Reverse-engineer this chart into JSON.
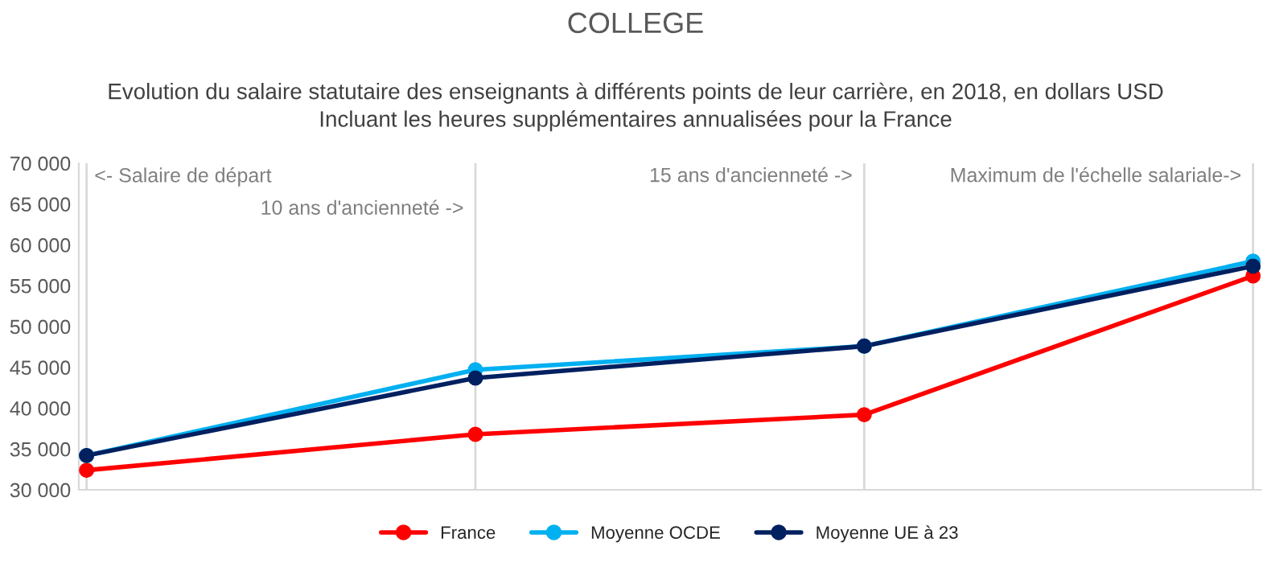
{
  "chart_data": {
    "type": "line",
    "title": "COLLEGE",
    "subtitle": "Evolution du salaire statutaire des enseignants à différents points de leur carrière, en 2018, en dollars USD\nIncluant les heures supplémentaires annualisées pour la France",
    "categories": [
      null,
      null,
      null,
      null
    ],
    "series": [
      {
        "name": "France",
        "color": "#ff0000",
        "values": [
          32400,
          36800,
          39200,
          56200
        ]
      },
      {
        "name": "Moyenne OCDE",
        "color": "#00b0f0",
        "values": [
          34200,
          44700,
          47600,
          58000
        ]
      },
      {
        "name": "Moyenne UE à 23",
        "color": "#002060",
        "values": [
          34200,
          43700,
          47600,
          57400
        ]
      }
    ],
    "ylim": [
      30000,
      70000
    ],
    "yticks": [
      {
        "value": 30000,
        "label": "30 000"
      },
      {
        "value": 35000,
        "label": "35 000"
      },
      {
        "value": 40000,
        "label": "40 000"
      },
      {
        "value": 45000,
        "label": "45 000"
      },
      {
        "value": 50000,
        "label": "50 000"
      },
      {
        "value": 55000,
        "label": "55 000"
      },
      {
        "value": 60000,
        "label": "60 000"
      },
      {
        "value": 65000,
        "label": "65 000"
      },
      {
        "value": 70000,
        "label": "70 000"
      }
    ],
    "grid": "x",
    "legend": "bottom",
    "marker": "circle",
    "line_style": "solid",
    "annotations": [
      "<- Salaire de départ",
      "10 ans d'ancienneté ->",
      "15 ans d'ancienneté ->",
      "Maximum de l'échelle salariale->"
    ]
  }
}
